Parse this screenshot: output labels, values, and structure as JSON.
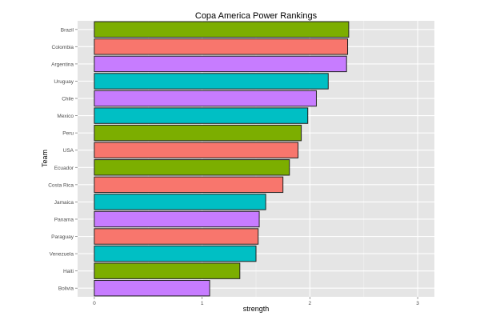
{
  "chart_data": {
    "type": "bar",
    "orientation": "horizontal",
    "title": "Copa America Power Rankings",
    "xlabel": "strength",
    "ylabel": "Team",
    "xlim": [
      -0.155,
      3.155
    ],
    "xticks": [
      0,
      1,
      2,
      3
    ],
    "xtick_labels": [
      "0",
      "1",
      "2",
      "3"
    ],
    "grid": true,
    "categories": [
      "Brazil",
      "Colombia",
      "Argentina",
      "Uruguay",
      "Chile",
      "Mexico",
      "Peru",
      "USA",
      "Ecuador",
      "Costa Rica",
      "Jamaica",
      "Panama",
      "Paraguay",
      "Venezuela",
      "Haiti",
      "Bolivia"
    ],
    "values": [
      2.36,
      2.35,
      2.34,
      2.17,
      2.06,
      1.98,
      1.92,
      1.89,
      1.81,
      1.75,
      1.59,
      1.53,
      1.52,
      1.5,
      1.35,
      1.07
    ],
    "colors": [
      "#7CAE00",
      "#F8766D",
      "#C77CFF",
      "#00BFC4",
      "#C77CFF",
      "#00BFC4",
      "#7CAE00",
      "#F8766D",
      "#7CAE00",
      "#F8766D",
      "#00BFC4",
      "#C77CFF",
      "#F8766D",
      "#00BFC4",
      "#7CAE00",
      "#C77CFF"
    ],
    "panel_background": "#E5E5E5",
    "grid_color": "#FFFFFF"
  }
}
